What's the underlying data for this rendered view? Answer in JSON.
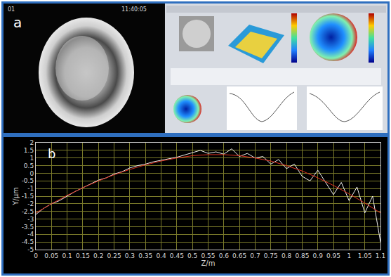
{
  "panels": {
    "a": {
      "label": "a",
      "overlay_texts": [
        "01",
        "11:40:05"
      ]
    },
    "b": {
      "label": "b"
    }
  },
  "chart_data": {
    "type": "line",
    "x_label": "Z/m",
    "y_label": "Y/μm",
    "series": [
      {
        "color": "#f0f0f0",
        "x": [
          0,
          0.025,
          0.05,
          0.075,
          0.1,
          0.125,
          0.15,
          0.175,
          0.2,
          0.225,
          0.25,
          0.275,
          0.3,
          0.325,
          0.35,
          0.375,
          0.4,
          0.425,
          0.45,
          0.475,
          0.5,
          0.525,
          0.55,
          0.575,
          0.6,
          0.625,
          0.65,
          0.675,
          0.7,
          0.725,
          0.75,
          0.775,
          0.8,
          0.825,
          0.85,
          0.875,
          0.9,
          0.925,
          0.95,
          0.975,
          1.0,
          1.025,
          1.05,
          1.075,
          1.1
        ],
        "values": [
          -2.7,
          -2.3,
          -2.0,
          -1.8,
          -1.5,
          -1.2,
          -0.95,
          -0.7,
          -0.45,
          -0.3,
          -0.05,
          0.1,
          0.35,
          0.5,
          0.6,
          0.75,
          0.85,
          0.95,
          1.05,
          1.2,
          1.35,
          1.5,
          1.3,
          1.4,
          1.25,
          1.6,
          1.1,
          1.3,
          1.0,
          1.1,
          0.6,
          0.9,
          0.3,
          0.6,
          -0.2,
          -0.5,
          0.2,
          -0.6,
          -1.4,
          -0.6,
          -1.8,
          -0.9,
          -2.6,
          -1.5,
          -4.5
        ]
      },
      {
        "color": "#e03020",
        "x": [
          0,
          0.05,
          0.1,
          0.15,
          0.2,
          0.25,
          0.3,
          0.35,
          0.4,
          0.45,
          0.5,
          0.55,
          0.6,
          0.65,
          0.7,
          0.75,
          0.8,
          0.85,
          0.9,
          0.95,
          1.0,
          1.05,
          1.1
        ],
        "values": [
          -2.6,
          -2.0,
          -1.45,
          -0.95,
          -0.5,
          -0.1,
          0.25,
          0.55,
          0.8,
          1.0,
          1.15,
          1.22,
          1.22,
          1.15,
          1.0,
          0.8,
          0.5,
          0.15,
          -0.3,
          -0.8,
          -1.35,
          -1.95,
          -2.6
        ]
      }
    ],
    "xlim": [
      0,
      1.1
    ],
    "xticks": [
      0,
      0.05,
      0.1,
      0.15,
      0.2,
      0.25,
      0.3,
      0.35,
      0.4,
      0.45,
      0.5,
      0.55,
      0.6,
      0.65,
      0.7,
      0.75,
      0.8,
      0.85,
      0.9,
      0.95,
      1,
      1.05,
      1.1
    ],
    "ylim": [
      -5,
      2
    ],
    "yticks": [
      -5,
      -4.5,
      -4,
      -3.5,
      -3,
      -2.5,
      -2,
      -1.5,
      -1,
      -0.5,
      0,
      0.5,
      1,
      1.5,
      2
    ],
    "grid": true
  }
}
